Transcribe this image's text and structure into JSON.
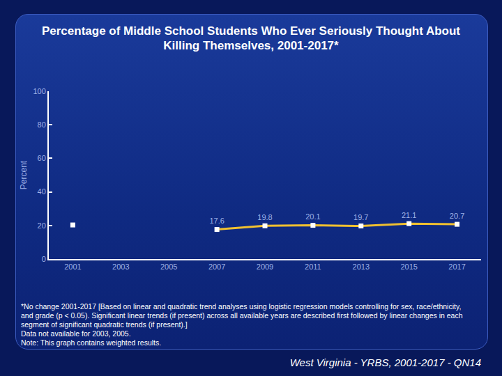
{
  "chart_data": {
    "type": "line",
    "title": "Percentage of Middle School Students Who Ever Seriously Thought About Killing Themselves, 2001-2017*",
    "y_label": "Percent",
    "categories": [
      "2001",
      "2003",
      "2005",
      "2007",
      "2009",
      "2011",
      "2013",
      "2015",
      "2017"
    ],
    "values": [
      20.3,
      null,
      null,
      17.6,
      19.8,
      20.1,
      19.7,
      21.1,
      20.7
    ],
    "value_labels": [
      null,
      null,
      null,
      "17.6",
      "19.8",
      "20.1",
      "19.7",
      "21.1",
      "20.7"
    ],
    "color": "#f0c030",
    "marker": "square",
    "ylim": [
      0,
      100
    ],
    "yticks": [
      0,
      20,
      40,
      60,
      80,
      100
    ],
    "grid": false,
    "data_labels": true,
    "notes": [
      "*No change 2001-2017 [Based on linear and quadratic trend analyses using logistic regression models controlling for sex, race/ethnicity, and grade (p < 0.05). Significant linear trends (if present) across all available years are described first followed by linear changes in each segment of significant quadratic trends (if present).]",
      "Data not available for 2003, 2005.",
      "Note: This graph contains weighted results."
    ],
    "source": "West Virginia - YRBS, 2001-2017 - QN14"
  }
}
